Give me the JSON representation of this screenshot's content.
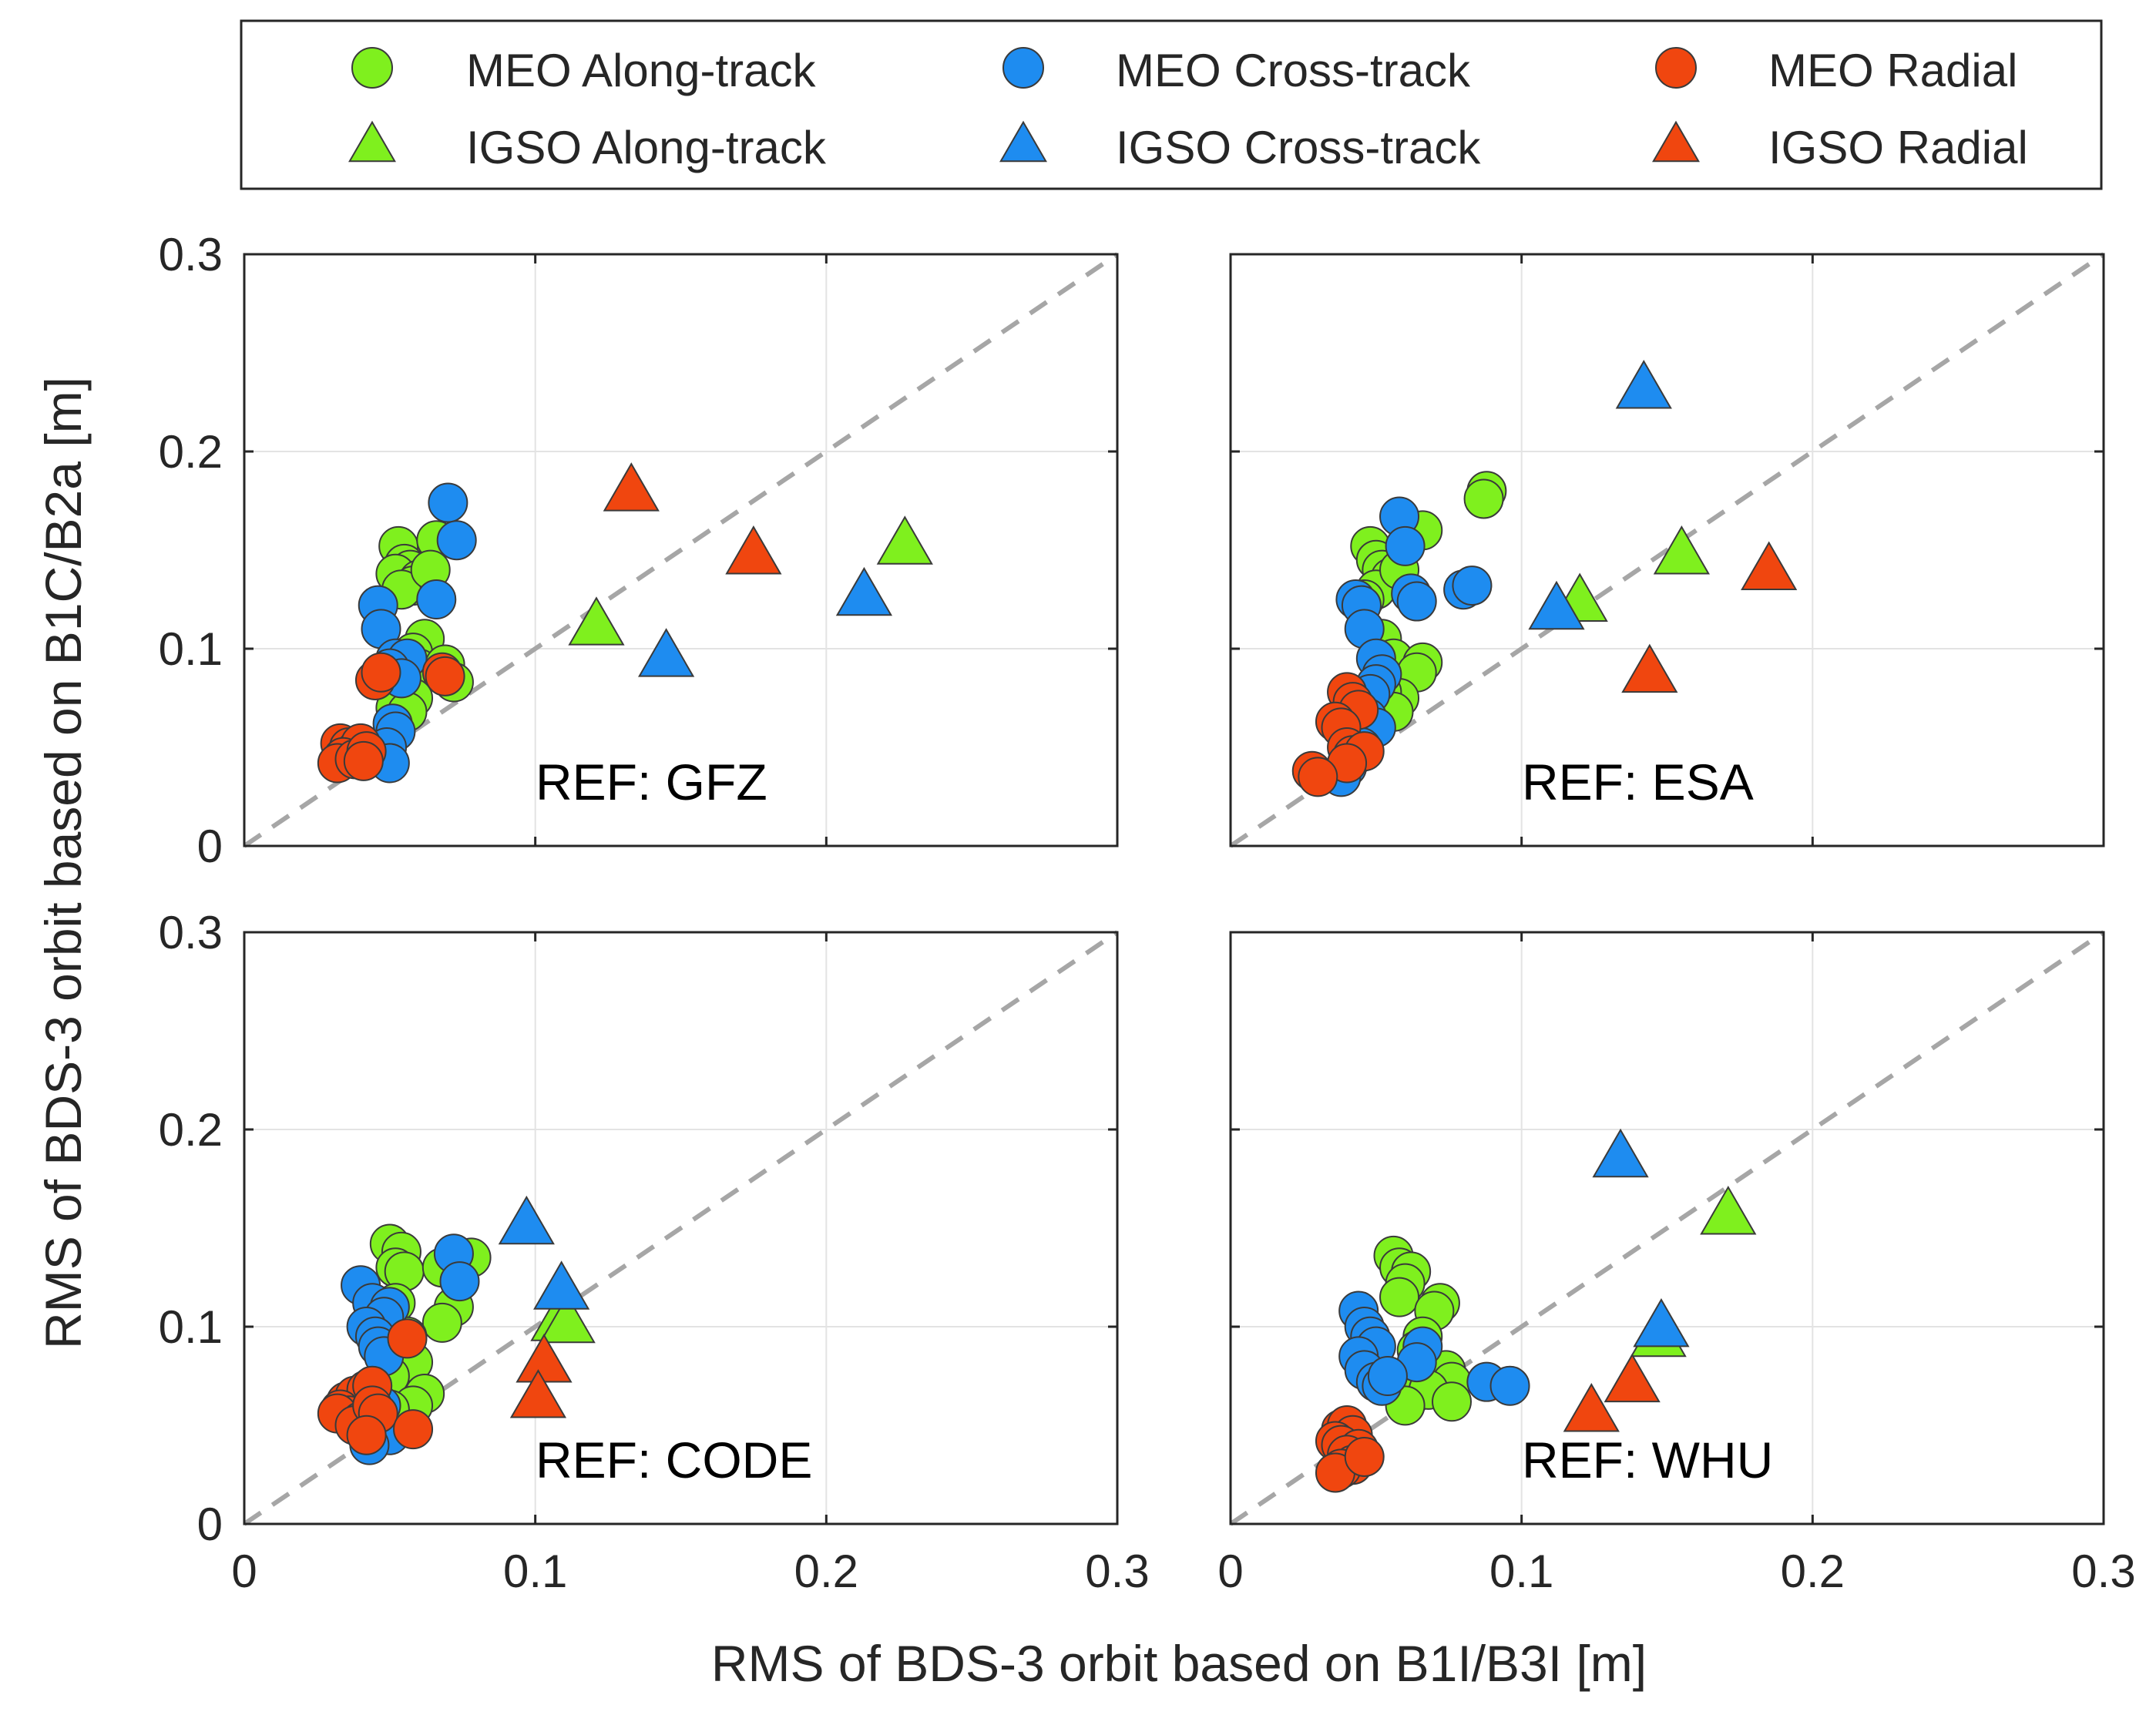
{
  "figure": {
    "xlabel": "RMS of BDS-3 orbit based on B1I/B3I [m]",
    "ylabel": "RMS of BDS-3 orbit based on B1C/B2a [m]",
    "legend": [
      {
        "label": "MEO Along-track",
        "marker": "circle",
        "color": "#7FF01E"
      },
      {
        "label": "MEO Cross-track",
        "marker": "circle",
        "color": "#1E8CF0"
      },
      {
        "label": "MEO Radial",
        "marker": "circle",
        "color": "#F0460F"
      },
      {
        "label": "IGSO Along-track",
        "marker": "triangle",
        "color": "#7FF01E"
      },
      {
        "label": "IGSO Cross-track",
        "marker": "triangle",
        "color": "#1E8CF0"
      },
      {
        "label": "IGSO Radial",
        "marker": "triangle",
        "color": "#F0460F"
      }
    ],
    "tick_labels": [
      "0",
      "0.1",
      "0.2",
      "0.3"
    ],
    "colors": {
      "along": "#7FF01E",
      "cross": "#1E8CF0",
      "radial": "#F0460F",
      "diagonal": "#A6A6A6"
    }
  },
  "chart_data": [
    {
      "type": "scatter",
      "title": "REF: GFZ",
      "xlim": [
        0,
        0.3
      ],
      "ylim": [
        0,
        0.3
      ],
      "grid": true,
      "reference_line": "y = x",
      "series": [
        {
          "name": "MEO Along-track",
          "marker": "circle",
          "points": [
            [
              0.053,
              0.152
            ],
            [
              0.055,
              0.143
            ],
            [
              0.057,
              0.14
            ],
            [
              0.052,
              0.138
            ],
            [
              0.06,
              0.135
            ],
            [
              0.058,
              0.132
            ],
            [
              0.054,
              0.13
            ],
            [
              0.066,
              0.155
            ],
            [
              0.064,
              0.14
            ],
            [
              0.062,
              0.105
            ],
            [
              0.058,
              0.098
            ],
            [
              0.06,
              0.09
            ],
            [
              0.056,
              0.085
            ],
            [
              0.058,
              0.075
            ],
            [
              0.052,
              0.07
            ],
            [
              0.056,
              0.068
            ],
            [
              0.069,
              0.092
            ],
            [
              0.072,
              0.083
            ]
          ]
        },
        {
          "name": "MEO Cross-track",
          "marker": "circle",
          "points": [
            [
              0.07,
              0.174
            ],
            [
              0.073,
              0.155
            ],
            [
              0.066,
              0.125
            ],
            [
              0.046,
              0.122
            ],
            [
              0.047,
              0.11
            ],
            [
              0.052,
              0.095
            ],
            [
              0.056,
              0.095
            ],
            [
              0.05,
              0.09
            ],
            [
              0.054,
              0.085
            ],
            [
              0.051,
              0.062
            ],
            [
              0.052,
              0.058
            ],
            [
              0.049,
              0.05
            ],
            [
              0.05,
              0.042
            ]
          ]
        },
        {
          "name": "MEO Radial",
          "marker": "circle",
          "points": [
            [
              0.033,
              0.052
            ],
            [
              0.036,
              0.05
            ],
            [
              0.038,
              0.048
            ],
            [
              0.04,
              0.052
            ],
            [
              0.034,
              0.045
            ],
            [
              0.032,
              0.042
            ],
            [
              0.038,
              0.044
            ],
            [
              0.042,
              0.048
            ],
            [
              0.041,
              0.043
            ],
            [
              0.045,
              0.084
            ],
            [
              0.047,
              0.088
            ],
            [
              0.068,
              0.088
            ],
            [
              0.069,
              0.086
            ]
          ]
        },
        {
          "name": "IGSO Along-track",
          "marker": "triangle",
          "points": [
            [
              0.121,
              0.112
            ],
            [
              0.227,
              0.153
            ]
          ]
        },
        {
          "name": "IGSO Cross-track",
          "marker": "triangle",
          "points": [
            [
              0.145,
              0.096
            ],
            [
              0.213,
              0.127
            ]
          ]
        },
        {
          "name": "IGSO Radial",
          "marker": "triangle",
          "points": [
            [
              0.133,
              0.18
            ],
            [
              0.175,
              0.148
            ]
          ]
        }
      ]
    },
    {
      "type": "scatter",
      "title": "REF: ESA",
      "xlim": [
        0,
        0.3
      ],
      "ylim": [
        0,
        0.3
      ],
      "grid": true,
      "reference_line": "y = x",
      "series": [
        {
          "name": "MEO Along-track",
          "marker": "circle",
          "points": [
            [
              0.088,
              0.18
            ],
            [
              0.087,
              0.176
            ],
            [
              0.066,
              0.16
            ],
            [
              0.048,
              0.152
            ],
            [
              0.05,
              0.145
            ],
            [
              0.052,
              0.14
            ],
            [
              0.055,
              0.136
            ],
            [
              0.05,
              0.13
            ],
            [
              0.046,
              0.125
            ],
            [
              0.058,
              0.14
            ],
            [
              0.052,
              0.105
            ],
            [
              0.056,
              0.095
            ],
            [
              0.066,
              0.093
            ],
            [
              0.064,
              0.088
            ],
            [
              0.058,
              0.075
            ],
            [
              0.052,
              0.078
            ],
            [
              0.05,
              0.07
            ],
            [
              0.056,
              0.068
            ],
            [
              0.048,
              0.06
            ]
          ]
        },
        {
          "name": "MEO Cross-track",
          "marker": "circle",
          "points": [
            [
              0.058,
              0.167
            ],
            [
              0.06,
              0.152
            ],
            [
              0.08,
              0.13
            ],
            [
              0.083,
              0.132
            ],
            [
              0.062,
              0.128
            ],
            [
              0.064,
              0.124
            ],
            [
              0.043,
              0.125
            ],
            [
              0.045,
              0.122
            ],
            [
              0.046,
              0.11
            ],
            [
              0.05,
              0.095
            ],
            [
              0.052,
              0.087
            ],
            [
              0.05,
              0.082
            ],
            [
              0.048,
              0.077
            ],
            [
              0.047,
              0.065
            ],
            [
              0.05,
              0.06
            ],
            [
              0.045,
              0.05
            ],
            [
              0.042,
              0.045
            ],
            [
              0.04,
              0.04
            ],
            [
              0.038,
              0.035
            ]
          ]
        },
        {
          "name": "MEO Radial",
          "marker": "circle",
          "points": [
            [
              0.04,
              0.078
            ],
            [
              0.042,
              0.073
            ],
            [
              0.044,
              0.069
            ],
            [
              0.036,
              0.063
            ],
            [
              0.038,
              0.06
            ],
            [
              0.04,
              0.05
            ],
            [
              0.042,
              0.046
            ],
            [
              0.046,
              0.048
            ],
            [
              0.04,
              0.042
            ],
            [
              0.028,
              0.038
            ],
            [
              0.03,
              0.035
            ]
          ]
        },
        {
          "name": "IGSO Along-track",
          "marker": "triangle",
          "points": [
            [
              0.12,
              0.124
            ],
            [
              0.155,
              0.148
            ]
          ]
        },
        {
          "name": "IGSO Cross-track",
          "marker": "triangle",
          "points": [
            [
              0.112,
              0.12
            ],
            [
              0.142,
              0.232
            ]
          ]
        },
        {
          "name": "IGSO Radial",
          "marker": "triangle",
          "points": [
            [
              0.144,
              0.088
            ],
            [
              0.185,
              0.14
            ]
          ]
        }
      ]
    },
    {
      "type": "scatter",
      "title": "REF: CODE",
      "xlim": [
        0,
        0.3
      ],
      "ylim": [
        0,
        0.3
      ],
      "grid": true,
      "reference_line": "y = x",
      "series": [
        {
          "name": "MEO Along-track",
          "marker": "circle",
          "points": [
            [
              0.05,
              0.142
            ],
            [
              0.054,
              0.138
            ],
            [
              0.052,
              0.13
            ],
            [
              0.055,
              0.128
            ],
            [
              0.076,
              0.134
            ],
            [
              0.078,
              0.135
            ],
            [
              0.068,
              0.13
            ],
            [
              0.072,
              0.11
            ],
            [
              0.068,
              0.102
            ],
            [
              0.052,
              0.112
            ],
            [
              0.056,
              0.095
            ],
            [
              0.058,
              0.082
            ],
            [
              0.05,
              0.075
            ],
            [
              0.062,
              0.066
            ],
            [
              0.058,
              0.06
            ],
            [
              0.05,
              0.058
            ]
          ]
        },
        {
          "name": "MEO Cross-track",
          "marker": "circle",
          "points": [
            [
              0.072,
              0.137
            ],
            [
              0.074,
              0.123
            ],
            [
              0.04,
              0.121
            ],
            [
              0.044,
              0.112
            ],
            [
              0.05,
              0.11
            ],
            [
              0.048,
              0.105
            ],
            [
              0.042,
              0.1
            ],
            [
              0.045,
              0.095
            ],
            [
              0.046,
              0.09
            ],
            [
              0.048,
              0.085
            ],
            [
              0.047,
              0.06
            ],
            [
              0.045,
              0.055
            ],
            [
              0.05,
              0.045
            ],
            [
              0.043,
              0.04
            ]
          ]
        },
        {
          "name": "MEO Radial",
          "marker": "circle",
          "points": [
            [
              0.056,
              0.094
            ],
            [
              0.035,
              0.062
            ],
            [
              0.038,
              0.065
            ],
            [
              0.042,
              0.068
            ],
            [
              0.044,
              0.07
            ],
            [
              0.033,
              0.058
            ],
            [
              0.036,
              0.055
            ],
            [
              0.032,
              0.056
            ],
            [
              0.04,
              0.052
            ],
            [
              0.038,
              0.05
            ],
            [
              0.044,
              0.06
            ],
            [
              0.046,
              0.056
            ],
            [
              0.058,
              0.048
            ],
            [
              0.042,
              0.045
            ]
          ]
        },
        {
          "name": "IGSO Along-track",
          "marker": "triangle",
          "points": [
            [
              0.108,
              0.103
            ],
            [
              0.111,
              0.102
            ]
          ]
        },
        {
          "name": "IGSO Cross-track",
          "marker": "triangle",
          "points": [
            [
              0.097,
              0.152
            ],
            [
              0.109,
              0.119
            ]
          ]
        },
        {
          "name": "IGSO Radial",
          "marker": "triangle",
          "points": [
            [
              0.103,
              0.082
            ],
            [
              0.101,
              0.064
            ]
          ]
        }
      ]
    },
    {
      "type": "scatter",
      "title": "REF: WHU",
      "xlim": [
        0,
        0.3
      ],
      "ylim": [
        0,
        0.3
      ],
      "grid": true,
      "reference_line": "y = x",
      "series": [
        {
          "name": "MEO Along-track",
          "marker": "circle",
          "points": [
            [
              0.056,
              0.136
            ],
            [
              0.058,
              0.13
            ],
            [
              0.062,
              0.128
            ],
            [
              0.06,
              0.122
            ],
            [
              0.058,
              0.115
            ],
            [
              0.072,
              0.112
            ],
            [
              0.07,
              0.108
            ],
            [
              0.066,
              0.095
            ],
            [
              0.064,
              0.088
            ],
            [
              0.074,
              0.078
            ],
            [
              0.076,
              0.072
            ],
            [
              0.062,
              0.065
            ],
            [
              0.068,
              0.068
            ],
            [
              0.06,
              0.06
            ],
            [
              0.076,
              0.062
            ]
          ]
        },
        {
          "name": "MEO Cross-track",
          "marker": "circle",
          "points": [
            [
              0.044,
              0.108
            ],
            [
              0.046,
              0.1
            ],
            [
              0.048,
              0.095
            ],
            [
              0.05,
              0.09
            ],
            [
              0.044,
              0.085
            ],
            [
              0.046,
              0.078
            ],
            [
              0.05,
              0.072
            ],
            [
              0.052,
              0.07
            ],
            [
              0.066,
              0.09
            ],
            [
              0.064,
              0.082
            ],
            [
              0.088,
              0.072
            ],
            [
              0.096,
              0.07
            ],
            [
              0.054,
              0.075
            ]
          ]
        },
        {
          "name": "MEO Radial",
          "marker": "circle",
          "points": [
            [
              0.038,
              0.048
            ],
            [
              0.04,
              0.05
            ],
            [
              0.042,
              0.045
            ],
            [
              0.036,
              0.042
            ],
            [
              0.038,
              0.04
            ],
            [
              0.044,
              0.038
            ],
            [
              0.04,
              0.035
            ],
            [
              0.042,
              0.03
            ],
            [
              0.038,
              0.028
            ],
            [
              0.036,
              0.026
            ],
            [
              0.046,
              0.034
            ]
          ]
        },
        {
          "name": "IGSO Along-track",
          "marker": "triangle",
          "points": [
            [
              0.147,
              0.095
            ],
            [
              0.171,
              0.157
            ]
          ]
        },
        {
          "name": "IGSO Cross-track",
          "marker": "triangle",
          "points": [
            [
              0.134,
              0.186
            ],
            [
              0.148,
              0.1
            ]
          ]
        },
        {
          "name": "IGSO Radial",
          "marker": "triangle",
          "points": [
            [
              0.124,
              0.057
            ],
            [
              0.138,
              0.072
            ]
          ]
        }
      ]
    }
  ]
}
